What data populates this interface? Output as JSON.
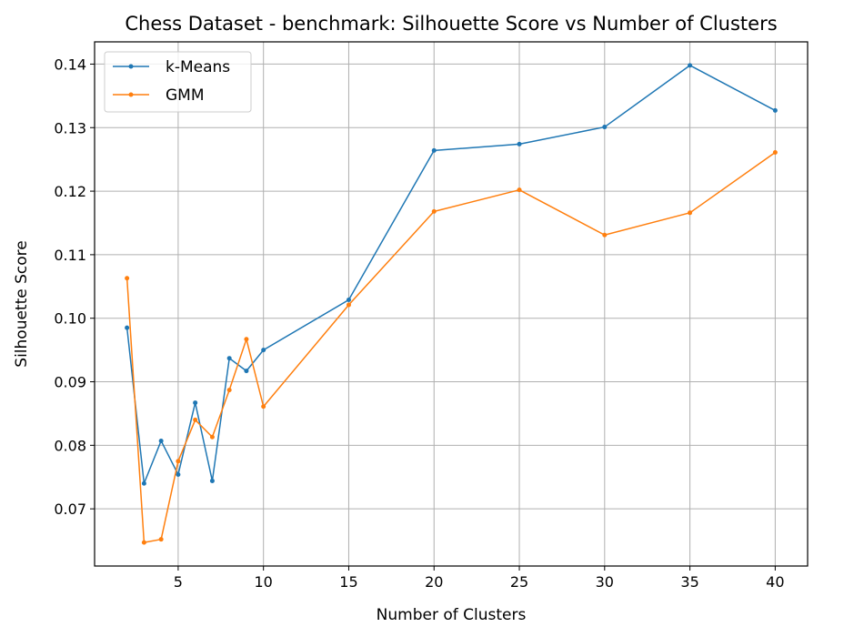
{
  "chart_data": {
    "type": "line",
    "title": "Chess Dataset - benchmark: Silhouette Score vs Number of Clusters",
    "xlabel": "Number of Clusters",
    "ylabel": "Silhouette Score",
    "xlim": [
      0.1,
      41.9
    ],
    "ylim": [
      0.061,
      0.1435
    ],
    "xticks": [
      5,
      10,
      15,
      20,
      25,
      30,
      35,
      40
    ],
    "yticks": [
      0.07,
      0.08,
      0.09,
      0.1,
      0.11,
      0.12,
      0.13,
      0.14
    ],
    "ytick_labels": [
      "0.07",
      "0.08",
      "0.09",
      "0.10",
      "0.11",
      "0.12",
      "0.13",
      "0.14"
    ],
    "grid": true,
    "legend_position": "top-left",
    "x": [
      2,
      3,
      4,
      5,
      6,
      7,
      8,
      9,
      10,
      15,
      20,
      25,
      30,
      35,
      40
    ],
    "series": [
      {
        "name": "k-Means",
        "color": "#1f77b4",
        "values": [
          0.0985,
          0.074,
          0.0807,
          0.0754,
          0.0867,
          0.0744,
          0.0937,
          0.0917,
          0.095,
          0.1029,
          0.1264,
          0.1274,
          0.1301,
          0.1398,
          0.1327
        ]
      },
      {
        "name": "GMM",
        "color": "#ff7f0e",
        "values": [
          0.1063,
          0.0647,
          0.0652,
          0.0775,
          0.084,
          0.0813,
          0.0887,
          0.0967,
          0.0861,
          0.1021,
          0.1168,
          0.1202,
          0.1131,
          0.1166,
          0.1261
        ]
      }
    ]
  }
}
